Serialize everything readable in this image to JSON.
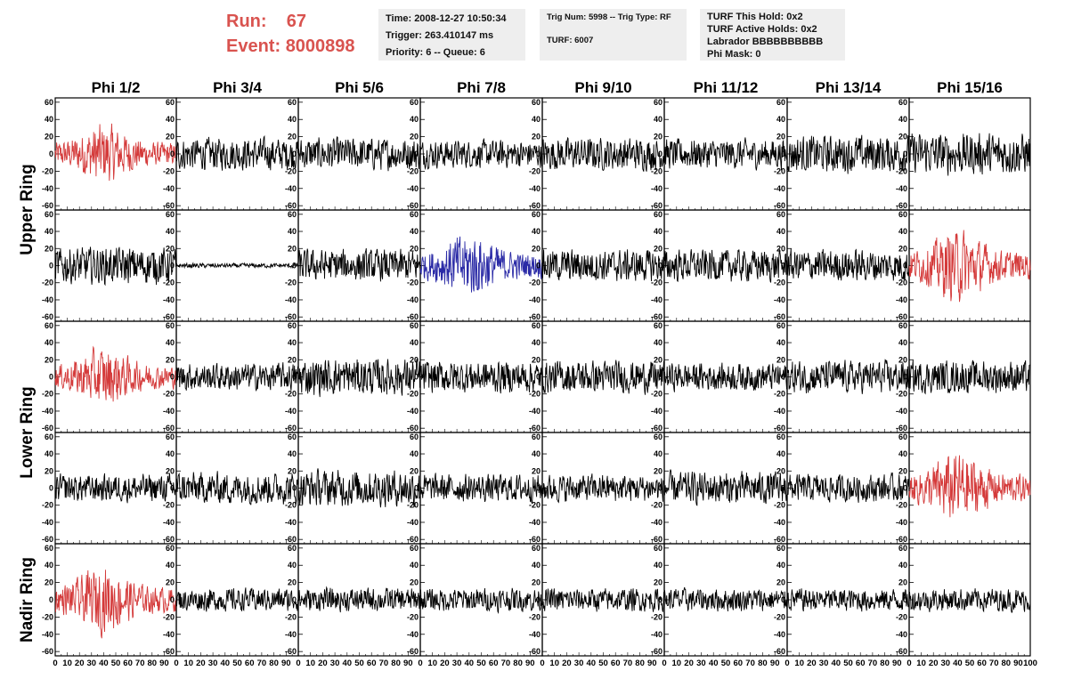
{
  "header": {
    "run_label": "Run:",
    "run_value": "67",
    "event_label": "Event:",
    "event_value": "8000898",
    "time": "Time: 2008-12-27 10:50:34",
    "trigger": "Trigger: 263.410147 ms",
    "priority": "Priority: 6 -- Queue: 6",
    "trig_num": "Trig Num: 5998 -- Trig Type: RF",
    "turf": "TURF: 6007",
    "turf_hold": "TURF This Hold: 0x2",
    "turf_active": "TURF Active Holds: 0x2",
    "labrador": "Labrador BBBBBBBBBB",
    "phi_mask": "Phi Mask: 0"
  },
  "colors": {
    "red": "#d43a3a",
    "blue": "#2a2aa6",
    "black": "#000000",
    "title_red": "#d9534f"
  },
  "chart_data": {
    "type": "line",
    "columns": [
      "Phi 1/2",
      "Phi 3/4",
      "Phi 5/6",
      "Phi 7/8",
      "Phi 9/10",
      "Phi 11/12",
      "Phi 13/14",
      "Phi 15/16"
    ],
    "rows": [
      {
        "rows": [
          "Upper Ring",
          "Upper Ring"
        ]
      },
      {
        "rows": [
          "Lower Ring",
          "Lower Ring"
        ]
      },
      {
        "rows": [
          "Nadir Ring"
        ]
      }
    ],
    "ring_labels": [
      "Upper Ring",
      "Lower Ring",
      "Nadir Ring"
    ],
    "ylim": [
      -65,
      65
    ],
    "yticks": [
      -60,
      -40,
      -20,
      0,
      20,
      40,
      60
    ],
    "xlim": [
      0,
      100
    ],
    "xticks": [
      0,
      10,
      20,
      30,
      40,
      50,
      60,
      70,
      80,
      90,
      100
    ],
    "n_points": 256,
    "amplitude": [
      [
        18,
        14,
        14,
        12,
        14,
        13,
        16,
        18
      ],
      [
        16,
        2,
        14,
        20,
        14,
        14,
        14,
        22
      ],
      [
        18,
        12,
        16,
        14,
        14,
        12,
        14,
        14
      ],
      [
        12,
        14,
        16,
        12,
        12,
        14,
        12,
        22
      ],
      [
        20,
        10,
        10,
        10,
        10,
        10,
        10,
        10
      ]
    ],
    "color_map": [
      [
        "red",
        "black",
        "black",
        "black",
        "black",
        "black",
        "black",
        "black"
      ],
      [
        "black",
        "black",
        "black",
        "blue",
        "black",
        "black",
        "black",
        "red"
      ],
      [
        "red",
        "black",
        "black",
        "black",
        "black",
        "black",
        "black",
        "black"
      ],
      [
        "black",
        "black",
        "black",
        "black",
        "black",
        "black",
        "black",
        "red"
      ],
      [
        "red",
        "black",
        "black",
        "black",
        "black",
        "black",
        "black",
        "black"
      ]
    ]
  }
}
